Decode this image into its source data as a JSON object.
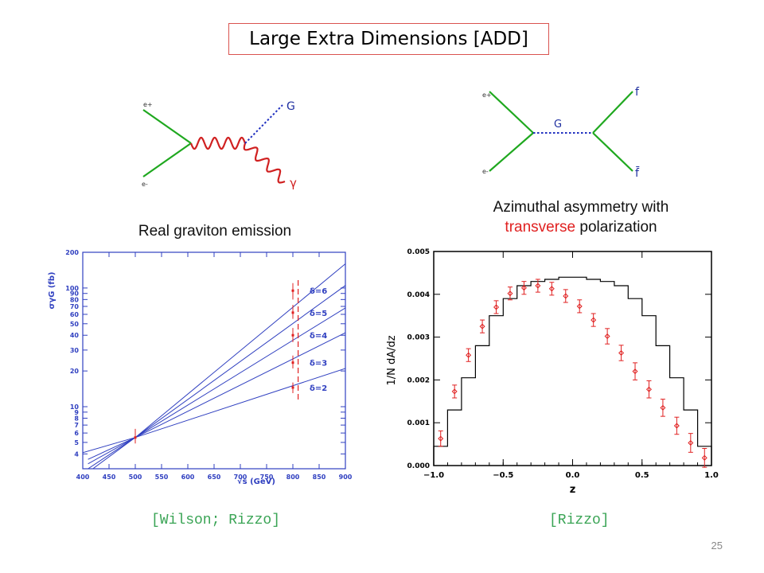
{
  "title": "Large Extra Dimensions [ADD]",
  "left_panel": {
    "caption": "Real graviton emission",
    "reference": "[Wilson; Rizzo]",
    "diagram": {
      "labels": {
        "e_plus": "e+",
        "e_minus": "e-",
        "graviton": "G",
        "photon": "γ"
      }
    }
  },
  "right_panel": {
    "caption_line1": "Azimuthal asymmetry with",
    "caption_line2_red": "transverse",
    "caption_line2_rest": " polarization",
    "reference": "[Rizzo]",
    "diagram": {
      "labels": {
        "e_plus": "e+",
        "e_minus": "e-",
        "graviton": "G",
        "f": "f",
        "fbar": "f̄"
      }
    }
  },
  "slide_number": "25",
  "colors": {
    "accent_red": "#e02020",
    "line_blue": "#3040c0",
    "ref_green": "#3aa455",
    "diagram_green": "#1fa81f"
  },
  "chart_data": [
    {
      "type": "line",
      "ylabel": "σγG (fb)",
      "xlabel": "√s (GeV)",
      "xlim": [
        400,
        900
      ],
      "ylim": [
        3,
        200
      ],
      "yscale": "log",
      "xticks": [
        400,
        450,
        500,
        550,
        600,
        650,
        700,
        750,
        800,
        850,
        900
      ],
      "yticks": [
        {
          "v": 200,
          "label": "200"
        },
        {
          "v": 100,
          "label": "100"
        },
        {
          "v": 90,
          "label": "90"
        },
        {
          "v": 80,
          "label": "80"
        },
        {
          "v": 70,
          "label": "70"
        },
        {
          "v": 60,
          "label": "60"
        },
        {
          "v": 50,
          "label": "50"
        },
        {
          "v": 40,
          "label": "40"
        },
        {
          "v": 30,
          "label": "30"
        },
        {
          "v": 20,
          "label": "20"
        },
        {
          "v": 10,
          "label": "10"
        },
        {
          "v": 9,
          "label": "9"
        },
        {
          "v": 8,
          "label": "8"
        },
        {
          "v": 7,
          "label": "7"
        },
        {
          "v": 6,
          "label": "6"
        },
        {
          "v": 5,
          "label": "5"
        },
        {
          "v": 4,
          "label": "4"
        }
      ],
      "series": [
        {
          "name": "δ=6",
          "x": [
            410,
            500,
            900
          ],
          "y": [
            2.8,
            5.5,
            160
          ]
        },
        {
          "name": "δ=5",
          "x": [
            410,
            500,
            900
          ],
          "y": [
            3.0,
            5.5,
            105
          ]
        },
        {
          "name": "δ=4",
          "x": [
            410,
            500,
            900
          ],
          "y": [
            3.3,
            5.5,
            68
          ]
        },
        {
          "name": "δ=3",
          "x": [
            410,
            500,
            900
          ],
          "y": [
            3.6,
            5.5,
            42
          ]
        },
        {
          "name": "δ=2",
          "x": [
            400,
            500,
            900
          ],
          "y": [
            4.1,
            5.5,
            21
          ]
        }
      ],
      "points": [
        {
          "x": 500,
          "y": 5.5,
          "ylow": 4.9,
          "yhigh": 6.5
        },
        {
          "x": 800,
          "y": 95,
          "ylow": 80,
          "yhigh": 110
        },
        {
          "x": 800,
          "y": 62,
          "ylow": 55,
          "yhigh": 72
        },
        {
          "x": 800,
          "y": 40,
          "ylow": 35,
          "yhigh": 46
        },
        {
          "x": 800,
          "y": 23.5,
          "ylow": 21,
          "yhigh": 27
        },
        {
          "x": 800,
          "y": 14.5,
          "ylow": 13,
          "yhigh": 16
        }
      ],
      "dashed_marker": {
        "x": 810,
        "ylow": 11.5,
        "yhigh": 120
      }
    },
    {
      "type": "scatter",
      "xlabel": "z",
      "ylabel": "1/N dA/dz",
      "xlim": [
        -1.0,
        1.0
      ],
      "ylim": [
        0,
        0.005
      ],
      "xticks": [
        -1.0,
        -0.5,
        0.0,
        0.5,
        1.0
      ],
      "xticklabels": [
        "−1.0",
        "−0.5",
        "0.0",
        "0.5",
        "1.0"
      ],
      "yticks": [
        0.0,
        0.001,
        0.002,
        0.003,
        0.004,
        0.005
      ],
      "yticklabels": [
        "0.000",
        "0.001",
        "0.002",
        "0.003",
        "0.004",
        "0.005"
      ],
      "histogram": {
        "bin_edges": [
          -1.0,
          -0.9,
          -0.8,
          -0.7,
          -0.6,
          -0.5,
          -0.4,
          -0.3,
          -0.2,
          -0.1,
          0.0,
          0.1,
          0.2,
          0.3,
          0.4,
          0.5,
          0.6,
          0.7,
          0.8,
          0.9,
          1.0
        ],
        "values": [
          0.00045,
          0.0013,
          0.00205,
          0.0028,
          0.0035,
          0.0039,
          0.0042,
          0.0043,
          0.00435,
          0.0044,
          0.0044,
          0.00435,
          0.0043,
          0.0042,
          0.0039,
          0.0035,
          0.0028,
          0.00205,
          0.0013,
          0.00045
        ]
      },
      "points": {
        "x": [
          -0.95,
          -0.85,
          -0.75,
          -0.65,
          -0.55,
          -0.45,
          -0.35,
          -0.25,
          -0.15,
          -0.05,
          0.05,
          0.15,
          0.25,
          0.35,
          0.45,
          0.55,
          0.65,
          0.75,
          0.85,
          0.95
        ],
        "y": [
          0.00063,
          0.00173,
          0.00258,
          0.00325,
          0.0037,
          0.00402,
          0.00415,
          0.0042,
          0.00413,
          0.00396,
          0.00372,
          0.0034,
          0.00302,
          0.00263,
          0.0022,
          0.00178,
          0.00135,
          0.00093,
          0.00053,
          0.00018
        ],
        "err": [
          0.00018,
          0.00015,
          0.00015,
          0.00015,
          0.00015,
          0.00015,
          0.00015,
          0.00015,
          0.00015,
          0.00015,
          0.00015,
          0.00015,
          0.00018,
          0.00018,
          0.0002,
          0.0002,
          0.0002,
          0.0002,
          0.00022,
          0.00022
        ]
      }
    }
  ]
}
